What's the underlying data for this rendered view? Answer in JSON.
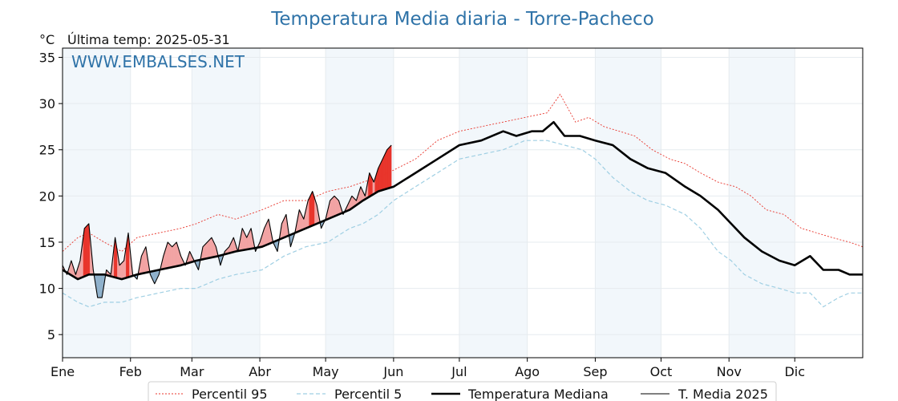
{
  "chart_data": {
    "type": "line",
    "title": "Temperatura Media diaria - Torre-Pacheco",
    "ylabel": "°C",
    "last_temp_text": "Última temp: 2025-05-31",
    "watermark": "WWW.EMBALSES.NET",
    "ylim": [
      2.5,
      36.0
    ],
    "xlim_day": [
      1,
      366
    ],
    "yticks": [
      5,
      10,
      15,
      20,
      25,
      30,
      35
    ],
    "months": [
      {
        "label": "Ene",
        "start_day": 1
      },
      {
        "label": "Feb",
        "start_day": 32
      },
      {
        "label": "Mar",
        "start_day": 60
      },
      {
        "label": "Abr",
        "start_day": 91
      },
      {
        "label": "May",
        "start_day": 121
      },
      {
        "label": "Jun",
        "start_day": 152
      },
      {
        "label": "Jul",
        "start_day": 182
      },
      {
        "label": "Ago",
        "start_day": 213
      },
      {
        "label": "Sep",
        "start_day": 244
      },
      {
        "label": "Oct",
        "start_day": 274
      },
      {
        "label": "Nov",
        "start_day": 305
      },
      {
        "label": "Dic",
        "start_day": 335
      }
    ],
    "grid": true,
    "legend_position": "bottom-center",
    "colors": {
      "p95": "#e8342b",
      "p5": "#9fcfe3",
      "median": "#000000",
      "current": "#000000",
      "warm_fill": "#f2a3a3",
      "warm_fill_strong": "#e8342b",
      "cold_fill": "#8fb1cc",
      "cold_fill_strong": "#2c6fa8",
      "band": "#f2f7fb",
      "title": "#2f73a8"
    },
    "series": [
      {
        "name": "Percentil 95",
        "x": [
          1,
          8,
          13,
          20,
          28,
          35,
          45,
          55,
          62,
          72,
          80,
          92,
          102,
          112,
          122,
          132,
          138,
          145,
          152,
          162,
          172,
          182,
          192,
          202,
          212,
          222,
          228,
          235,
          241,
          248,
          255,
          262,
          270,
          278,
          285,
          292,
          300,
          308,
          315,
          322,
          330,
          338,
          345,
          352,
          360,
          366
        ],
        "y": [
          14.0,
          15.5,
          16.0,
          15.0,
          14.0,
          15.5,
          16.0,
          16.5,
          17.0,
          18.0,
          17.5,
          18.5,
          19.5,
          19.5,
          20.5,
          21.0,
          21.5,
          22.0,
          22.8,
          24.0,
          26.0,
          27.0,
          27.5,
          28.0,
          28.5,
          29.0,
          31.0,
          28.0,
          28.5,
          27.5,
          27.0,
          26.5,
          25.0,
          24.0,
          23.5,
          22.5,
          21.5,
          21.0,
          20.0,
          18.5,
          18.0,
          16.5,
          16.0,
          15.5,
          15.0,
          14.5
        ]
      },
      {
        "name": "Percentil 5",
        "x": [
          1,
          8,
          13,
          20,
          28,
          35,
          45,
          55,
          62,
          72,
          80,
          92,
          102,
          112,
          122,
          132,
          138,
          145,
          152,
          162,
          172,
          182,
          192,
          202,
          212,
          222,
          230,
          238,
          244,
          252,
          260,
          268,
          276,
          285,
          292,
          300,
          306,
          312,
          320,
          328,
          335,
          342,
          348,
          355,
          360,
          366
        ],
        "y": [
          9.5,
          8.5,
          8.0,
          8.5,
          8.5,
          9.0,
          9.5,
          10.0,
          10.0,
          11.0,
          11.5,
          12.0,
          13.5,
          14.5,
          15.0,
          16.5,
          17.0,
          18.0,
          19.5,
          21.0,
          22.5,
          24.0,
          24.5,
          25.0,
          26.0,
          26.0,
          25.5,
          25.0,
          24.0,
          22.0,
          20.5,
          19.5,
          19.0,
          18.0,
          16.5,
          14.0,
          13.0,
          11.5,
          10.5,
          10.0,
          9.5,
          9.5,
          8.0,
          9.0,
          9.5,
          9.5
        ]
      },
      {
        "name": "Temperatura Mediana",
        "x": [
          1,
          8,
          13,
          20,
          28,
          35,
          45,
          55,
          62,
          72,
          80,
          92,
          102,
          112,
          122,
          132,
          138,
          145,
          152,
          162,
          172,
          182,
          192,
          202,
          208,
          215,
          220,
          225,
          230,
          237,
          244,
          252,
          260,
          268,
          276,
          285,
          292,
          300,
          306,
          312,
          320,
          328,
          335,
          342,
          348,
          355,
          360,
          366
        ],
        "y": [
          12.0,
          11.0,
          11.5,
          11.5,
          11.0,
          11.5,
          12.0,
          12.5,
          13.0,
          13.5,
          14.0,
          14.5,
          15.5,
          16.5,
          17.5,
          18.5,
          19.5,
          20.5,
          21.0,
          22.5,
          24.0,
          25.5,
          26.0,
          27.0,
          26.5,
          27.0,
          27.0,
          28.0,
          26.5,
          26.5,
          26.0,
          25.5,
          24.0,
          23.0,
          22.5,
          21.0,
          20.0,
          18.5,
          17.0,
          15.5,
          14.0,
          13.0,
          12.5,
          13.5,
          12.0,
          12.0,
          11.5,
          11.5
        ]
      },
      {
        "name": "T. Media 2025",
        "x": [
          1,
          3,
          5,
          7,
          9,
          11,
          13,
          15,
          17,
          19,
          21,
          23,
          25,
          27,
          29,
          31,
          33,
          35,
          37,
          39,
          41,
          43,
          45,
          47,
          49,
          51,
          53,
          55,
          57,
          59,
          61,
          63,
          65,
          67,
          69,
          71,
          73,
          75,
          77,
          79,
          81,
          83,
          85,
          87,
          89,
          91,
          93,
          95,
          97,
          99,
          101,
          103,
          105,
          107,
          109,
          111,
          113,
          115,
          117,
          119,
          121,
          123,
          125,
          127,
          129,
          131,
          133,
          135,
          137,
          139,
          141,
          143,
          145,
          147,
          149,
          151
        ],
        "y": [
          12.5,
          11.5,
          13.0,
          11.5,
          13.0,
          16.5,
          17.0,
          12.0,
          9.0,
          9.0,
          12.0,
          11.5,
          15.5,
          12.5,
          13.0,
          16.0,
          11.5,
          11.0,
          13.5,
          14.5,
          11.5,
          10.5,
          11.5,
          13.5,
          15.0,
          14.5,
          15.0,
          13.5,
          12.5,
          14.0,
          13.0,
          12.0,
          14.5,
          15.0,
          15.5,
          14.5,
          12.5,
          14.0,
          14.5,
          15.5,
          14.0,
          16.5,
          15.5,
          16.5,
          14.0,
          15.0,
          16.5,
          17.5,
          15.0,
          14.0,
          17.0,
          18.0,
          14.5,
          16.0,
          18.5,
          17.5,
          19.5,
          20.5,
          19.0,
          16.5,
          17.5,
          19.5,
          20.0,
          19.5,
          18.0,
          19.0,
          20.0,
          19.5,
          21.0,
          20.0,
          22.5,
          21.5,
          23.0,
          24.0,
          25.0,
          25.5
        ]
      }
    ]
  }
}
